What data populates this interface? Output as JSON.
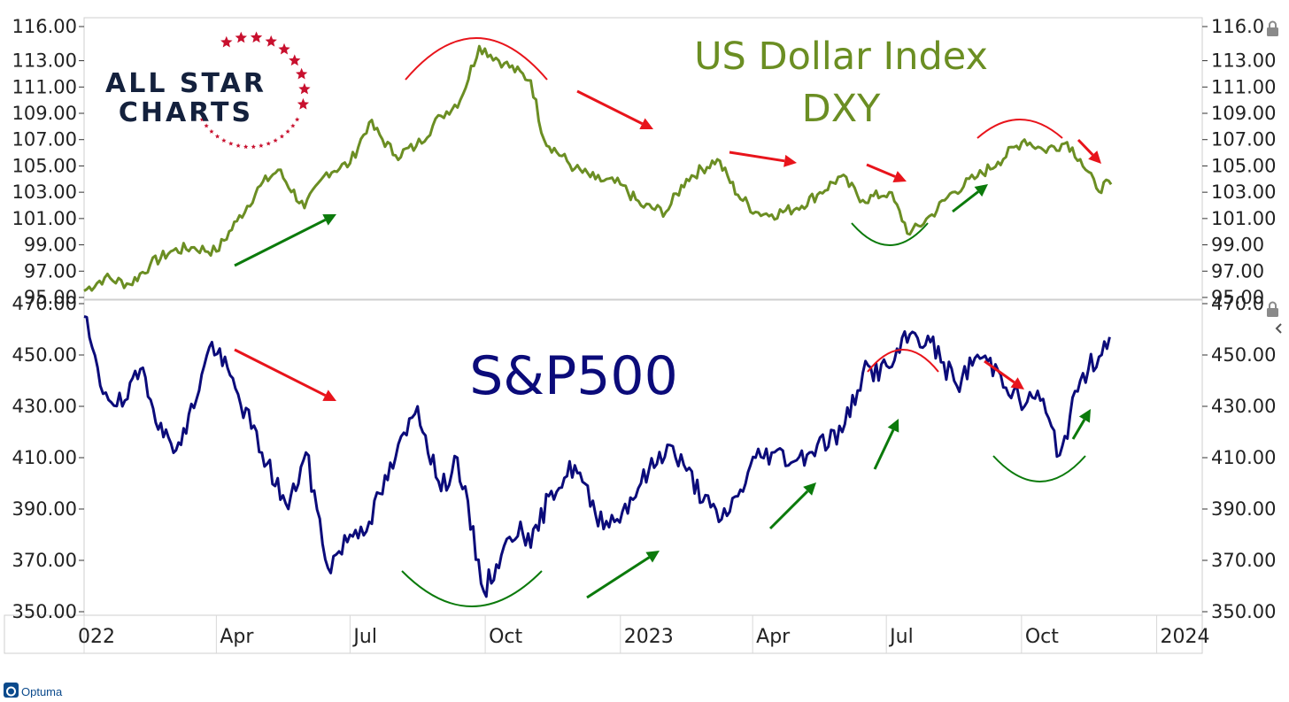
{
  "chart_data": [
    {
      "type": "line",
      "title": "US Dollar Index",
      "subtitle": "DXY",
      "yticks": [
        "116.00",
        "113.00",
        "111.00",
        "109.00",
        "107.00",
        "105.00",
        "103.00",
        "101.00",
        "99.00",
        "97.00",
        "95.00"
      ],
      "yticks_right": [
        "116.0",
        "113.00",
        "111.00",
        "109.00",
        "107.00",
        "105.00",
        "103.00",
        "101.00",
        "99.00",
        "97.00",
        "95.00"
      ],
      "ylim": [
        95,
        116
      ],
      "color": "#6b8e23",
      "x": [
        "2022-01-01",
        "2022-01-15",
        "2022-02-01",
        "2022-02-15",
        "2022-03-01",
        "2022-03-15",
        "2022-04-01",
        "2022-04-15",
        "2022-05-01",
        "2022-05-13",
        "2022-05-31",
        "2022-06-15",
        "2022-07-01",
        "2022-07-14",
        "2022-08-01",
        "2022-08-15",
        "2022-09-01",
        "2022-09-14",
        "2022-09-27",
        "2022-10-14",
        "2022-11-01",
        "2022-11-10",
        "2022-12-01",
        "2022-12-15",
        "2023-01-01",
        "2023-01-15",
        "2023-02-01",
        "2023-02-15",
        "2023-03-08",
        "2023-03-22",
        "2023-04-03",
        "2023-04-14",
        "2023-05-01",
        "2023-05-15",
        "2023-05-31",
        "2023-06-15",
        "2023-07-03",
        "2023-07-17",
        "2023-08-01",
        "2023-08-15",
        "2023-09-01",
        "2023-09-15",
        "2023-10-03",
        "2023-10-16",
        "2023-11-01",
        "2023-11-10",
        "2023-11-21",
        "2023-12-01"
      ],
      "values": [
        95.5,
        96.5,
        96.0,
        97.5,
        98.5,
        98.8,
        98.5,
        100.8,
        103.5,
        104.7,
        101.8,
        104.5,
        105.2,
        108.3,
        105.8,
        106.5,
        108.8,
        110.0,
        114.1,
        112.8,
        111.5,
        107.0,
        104.8,
        104.0,
        103.6,
        102.0,
        101.5,
        104.0,
        105.5,
        102.8,
        101.5,
        101.3,
        101.8,
        102.8,
        104.2,
        102.4,
        103.0,
        99.8,
        101.3,
        103.0,
        104.2,
        105.3,
        107.0,
        106.2,
        106.8,
        105.5,
        103.3,
        103.6
      ]
    },
    {
      "type": "line",
      "title": "S&P500",
      "yticks": [
        "470.00",
        "450.00",
        "430.00",
        "410.00",
        "390.00",
        "370.00",
        "350.00"
      ],
      "yticks_right": [
        "470.0",
        "450.00",
        "430.00",
        "410.00",
        "390.00",
        "370.00",
        "350.00"
      ],
      "ylim": [
        350,
        470
      ],
      "color": "#0b0b7a",
      "x": [
        "2022-01-01",
        "2022-01-12",
        "2022-01-27",
        "2022-02-10",
        "2022-02-24",
        "2022-03-08",
        "2022-03-29",
        "2022-04-14",
        "2022-05-02",
        "2022-05-20",
        "2022-06-01",
        "2022-06-16",
        "2022-07-01",
        "2022-07-14",
        "2022-08-01",
        "2022-08-16",
        "2022-09-01",
        "2022-09-12",
        "2022-09-30",
        "2022-10-12",
        "2022-10-25",
        "2022-11-01",
        "2022-11-15",
        "2022-12-01",
        "2022-12-15",
        "2022-12-28",
        "2023-01-15",
        "2023-02-02",
        "2023-02-15",
        "2023-03-09",
        "2023-03-22",
        "2023-04-03",
        "2023-04-14",
        "2023-05-01",
        "2023-05-15",
        "2023-06-01",
        "2023-06-15",
        "2023-07-03",
        "2023-07-17",
        "2023-07-31",
        "2023-08-18",
        "2023-09-01",
        "2023-09-15",
        "2023-10-03",
        "2023-10-12",
        "2023-10-27",
        "2023-11-10",
        "2023-11-30"
      ],
      "values": [
        465,
        438,
        430,
        445,
        418,
        415,
        455,
        437,
        412,
        390,
        412,
        367,
        380,
        385,
        410,
        430,
        397,
        410,
        358,
        372,
        385,
        375,
        397,
        407,
        388,
        385,
        400,
        415,
        405,
        385,
        395,
        410,
        412,
        409,
        415,
        420,
        443,
        445,
        458,
        455,
        438,
        450,
        444,
        430,
        436,
        411,
        440,
        457
      ]
    }
  ],
  "x_axis": {
    "ticks": [
      "022",
      "Apr",
      "Jul",
      "Oct",
      "2023",
      "Apr",
      "Jul",
      "Oct",
      "2024"
    ]
  },
  "logo": {
    "line1": "ALL STAR",
    "line2": "CHARTS",
    "star_color": "#c8102e",
    "text_color": "#14213d"
  },
  "footer": {
    "brand": "Optuma"
  },
  "icons": [
    "lock-icon",
    "collapse-icon"
  ],
  "colors": {
    "up_arrow": "#0b7a0b",
    "down_arrow": "#e8141b",
    "top_arc": "#e8141b",
    "bottom_arc": "#0b7a0b"
  }
}
